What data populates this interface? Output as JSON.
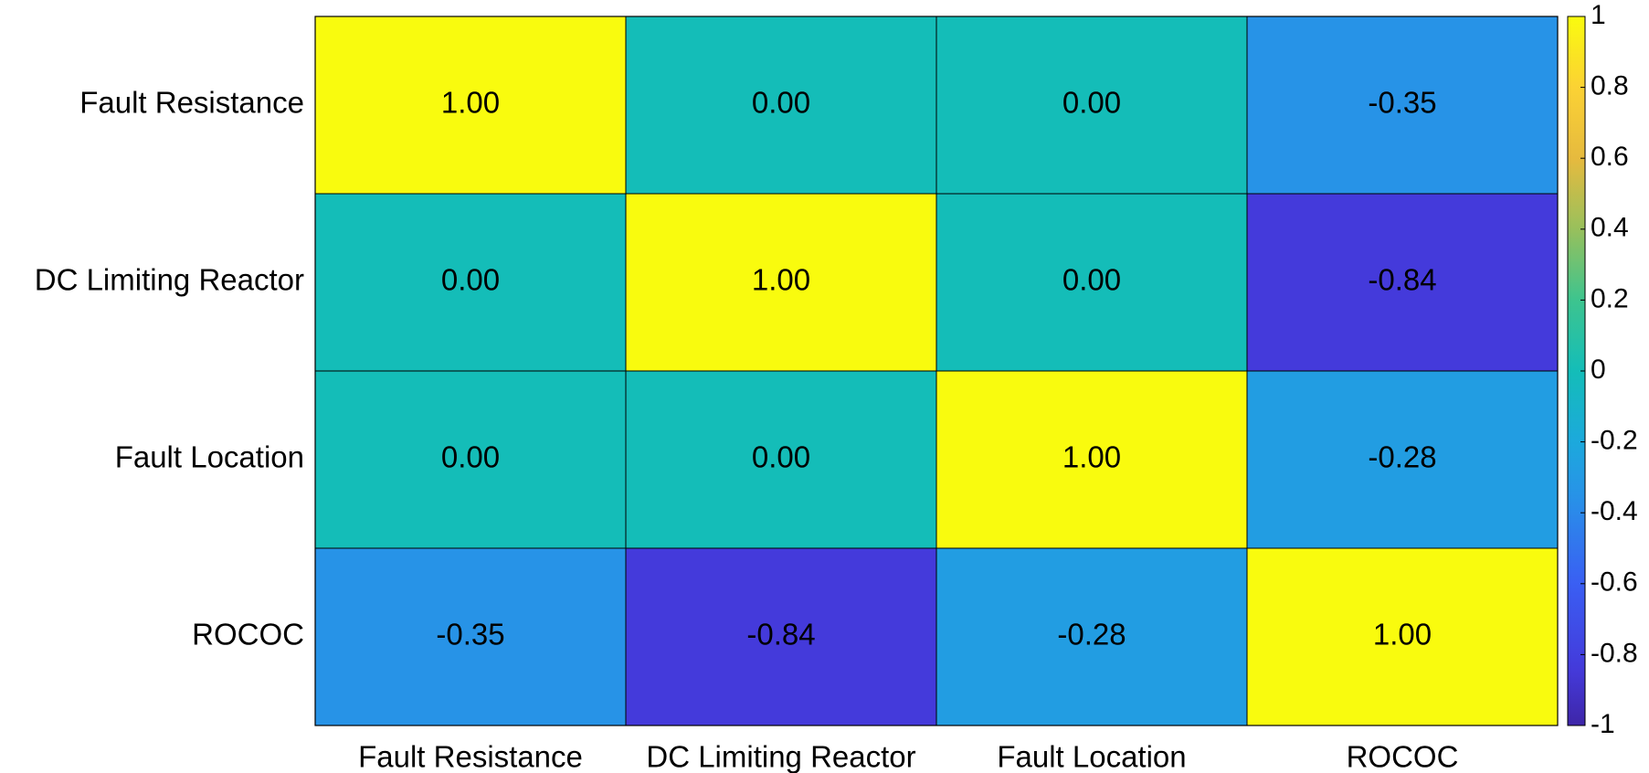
{
  "chart_data": {
    "type": "heatmap",
    "x_categories": [
      "Fault Resistance",
      "DC Limiting Reactor",
      "Fault Location",
      "ROCOC"
    ],
    "y_categories": [
      "Fault Resistance",
      "DC Limiting Reactor",
      "Fault Location",
      "ROCOC"
    ],
    "values": [
      [
        1,
        0,
        0,
        -0.35
      ],
      [
        0,
        1,
        0,
        -0.84
      ],
      [
        0,
        0,
        1,
        -0.28
      ],
      [
        -0.35,
        -0.84,
        -0.28,
        1
      ]
    ],
    "value_labels": [
      [
        "1.00",
        "0.00",
        "0.00",
        "-0.35"
      ],
      [
        "0.00",
        "1.00",
        "0.00",
        "-0.84"
      ],
      [
        "0.00",
        "0.00",
        "1.00",
        "-0.28"
      ],
      [
        "-0.35",
        "-0.84",
        "-0.28",
        "1.00"
      ]
    ],
    "colormap": "parula",
    "clim": [
      -1,
      1
    ],
    "colorbar_ticks": [
      1,
      0.8,
      0.6,
      0.4,
      0.2,
      0,
      -0.2,
      -0.4,
      -0.6,
      -0.8,
      -1
    ]
  }
}
